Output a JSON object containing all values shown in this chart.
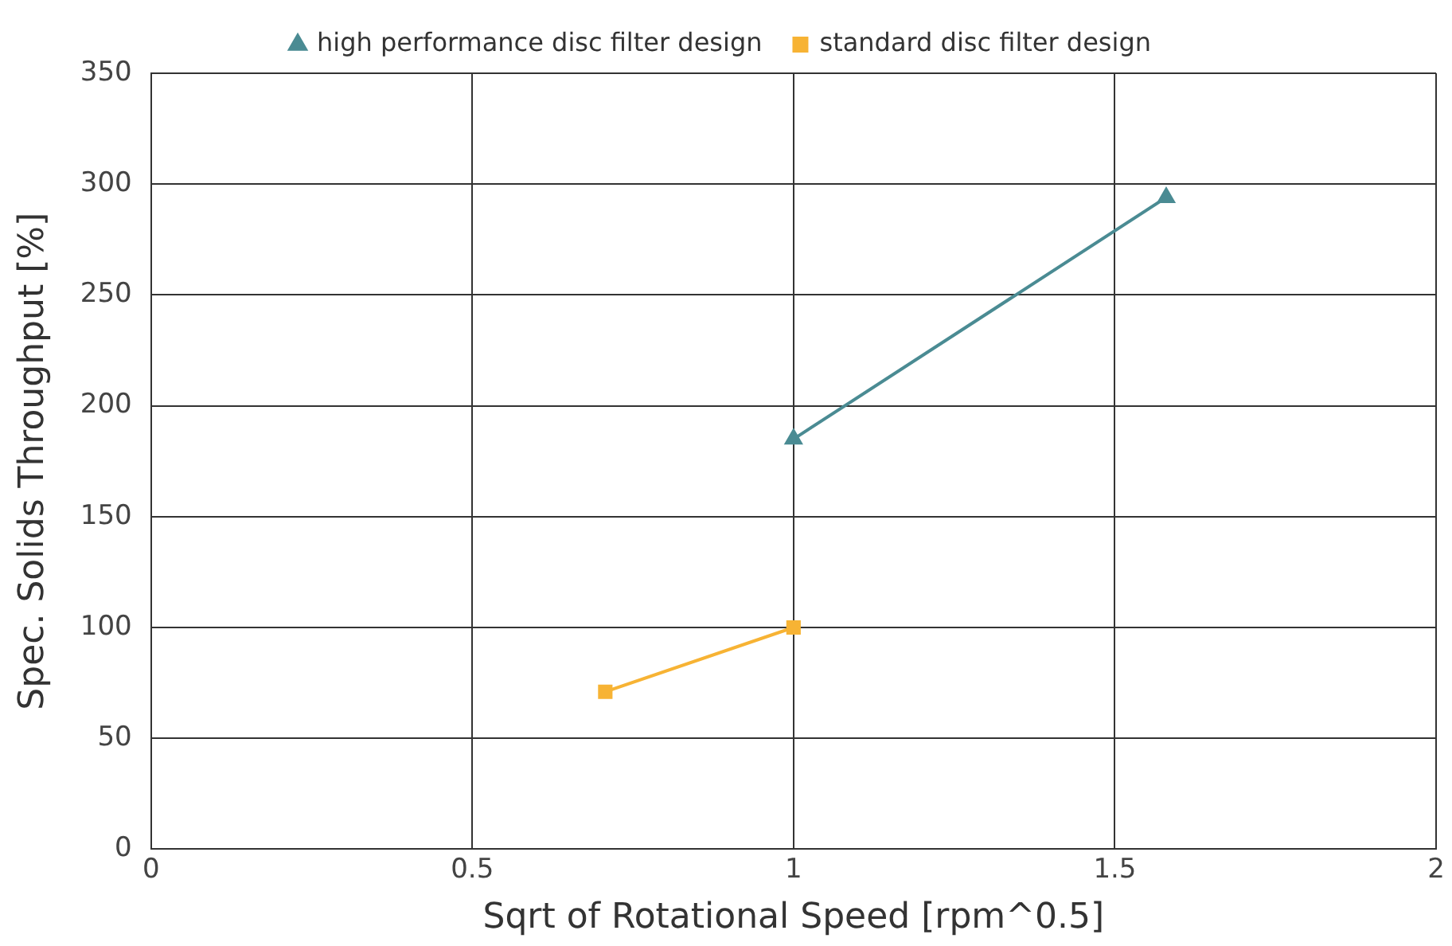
{
  "chart_data": {
    "type": "line",
    "xlabel": "Sqrt of Rotational Speed [rpm^0.5]",
    "ylabel": "Spec. Solids Throughput [%]",
    "xlim": [
      0,
      2
    ],
    "xticks": [
      0,
      0.5,
      1,
      1.5,
      2
    ],
    "ylim": [
      0,
      350
    ],
    "yticks": [
      0,
      50,
      100,
      150,
      200,
      250,
      300,
      350
    ],
    "grid": true,
    "legend": "top",
    "line_style": "solid",
    "series": [
      {
        "name": "high performance disc filter design",
        "color": "#4a8b93",
        "marker": "triangle",
        "x": [
          1,
          1.58
        ],
        "values": [
          185,
          294
        ]
      },
      {
        "name": "standard disc filter design",
        "color": "#f7b334",
        "marker": "square",
        "x": [
          0.707,
          1
        ],
        "values": [
          71,
          100
        ]
      }
    ]
  }
}
